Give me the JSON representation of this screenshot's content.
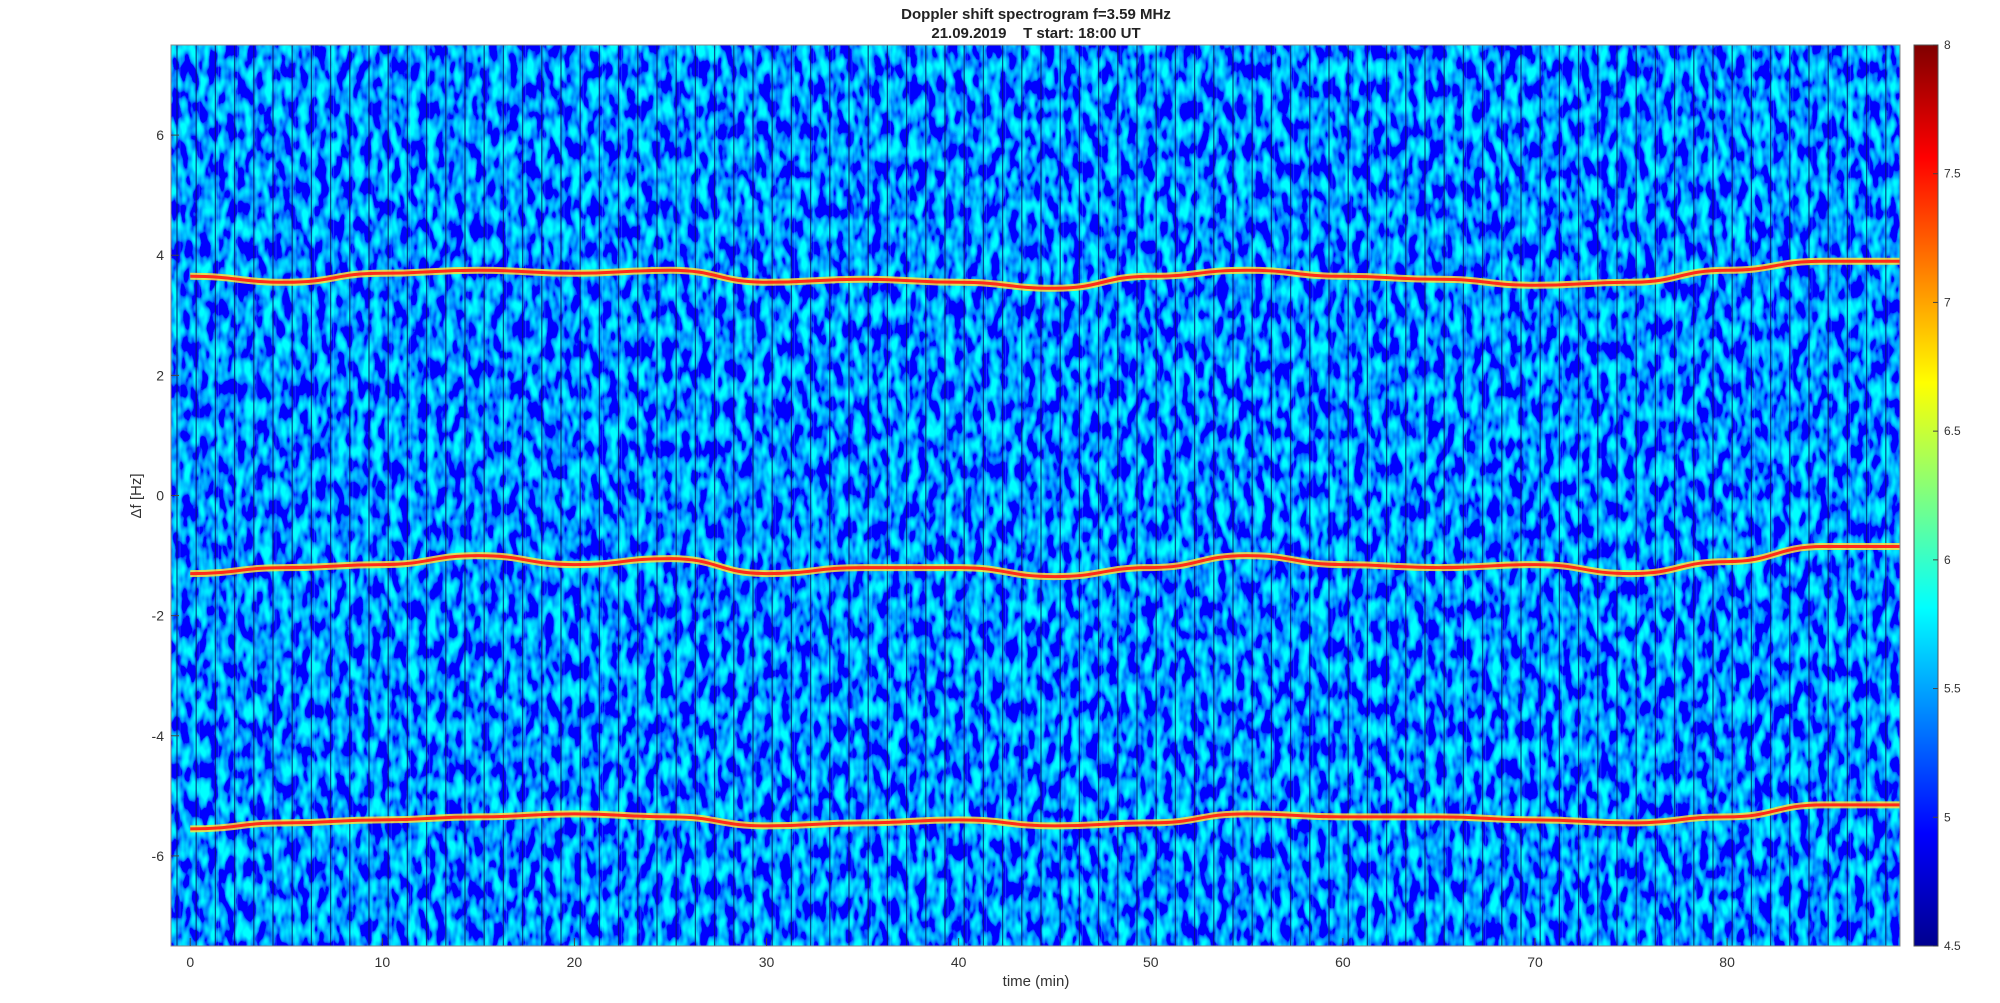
{
  "chart_data": {
    "type": "heatmap",
    "title": "Doppler shift spectrogram f=3.59 MHz",
    "subtitle": "21.09.2019    T start: 18:00 UT",
    "xlabel": "time (min)",
    "ylabel": "Δf [Hz]",
    "xlim": [
      -1,
      89
    ],
    "ylim": [
      -7.5,
      7.5
    ],
    "xticks": [
      0,
      10,
      20,
      30,
      40,
      50,
      60,
      70,
      80
    ],
    "yticks": [
      -6,
      -4,
      -2,
      0,
      2,
      4,
      6
    ],
    "colormap": "jet",
    "colorbar": {
      "range": [
        4.5,
        8
      ],
      "ticks": [
        "4.5",
        "5",
        "5.5",
        "6",
        "6.5",
        "7",
        "7.5",
        "8"
      ]
    },
    "traces": [
      {
        "description": "upper Doppler trace",
        "x": [
          0,
          5,
          10,
          15,
          20,
          25,
          30,
          35,
          40,
          45,
          50,
          55,
          60,
          65,
          70,
          75,
          80,
          85,
          89
        ],
        "y": [
          3.65,
          3.55,
          3.7,
          3.75,
          3.7,
          3.75,
          3.55,
          3.6,
          3.55,
          3.45,
          3.65,
          3.75,
          3.65,
          3.6,
          3.5,
          3.55,
          3.75,
          3.9,
          3.9
        ]
      },
      {
        "description": "middle Doppler trace",
        "x": [
          0,
          5,
          10,
          15,
          20,
          25,
          30,
          35,
          40,
          45,
          50,
          55,
          60,
          65,
          70,
          75,
          80,
          85,
          89
        ],
        "y": [
          -1.3,
          -1.2,
          -1.15,
          -1.0,
          -1.15,
          -1.05,
          -1.3,
          -1.2,
          -1.2,
          -1.35,
          -1.2,
          -1.0,
          -1.15,
          -1.2,
          -1.15,
          -1.3,
          -1.1,
          -0.85,
          -0.85
        ]
      },
      {
        "description": "lower Doppler trace",
        "x": [
          0,
          5,
          10,
          15,
          20,
          25,
          30,
          35,
          40,
          45,
          50,
          55,
          60,
          65,
          70,
          75,
          80,
          85,
          89
        ],
        "y": [
          -5.55,
          -5.45,
          -5.4,
          -5.35,
          -5.3,
          -5.35,
          -5.5,
          -5.45,
          -5.4,
          -5.5,
          -5.45,
          -5.3,
          -5.35,
          -5.35,
          -5.4,
          -5.45,
          -5.35,
          -5.15,
          -5.15
        ]
      }
    ]
  }
}
